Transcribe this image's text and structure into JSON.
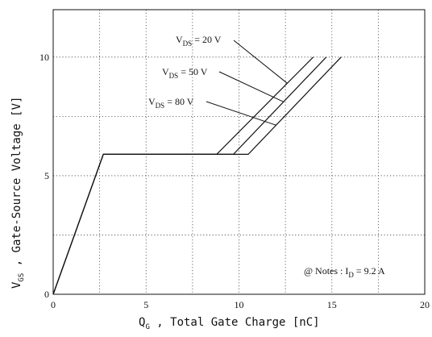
{
  "chart_data": {
    "type": "line",
    "x_axis": {
      "label_main": "Q",
      "label_sub": "G",
      "label_rest": " , Total Gate Charge  [nC]",
      "range": [
        0,
        20
      ],
      "ticks": [
        0,
        5,
        10,
        15,
        20
      ]
    },
    "y_axis": {
      "label_main": "V",
      "label_sub": "GS",
      "label_rest": " ,   Gate-Source Voltage  [V]",
      "range": [
        0,
        12
      ],
      "ticks": [
        0,
        5,
        10
      ]
    },
    "grid": true,
    "series": [
      {
        "name": "V_DS = 20 V",
        "label_main": "V",
        "label_sub": "DS",
        "label_rest": " = 20 V",
        "points": [
          [
            0,
            0
          ],
          [
            2.7,
            5.9
          ],
          [
            8.8,
            5.9
          ],
          [
            14.0,
            10.0
          ]
        ]
      },
      {
        "name": "V_DS = 50 V",
        "label_main": "V",
        "label_sub": "DS",
        "label_rest": " = 50 V",
        "points": [
          [
            0,
            0
          ],
          [
            2.7,
            5.9
          ],
          [
            9.7,
            5.9
          ],
          [
            14.7,
            10.0
          ]
        ]
      },
      {
        "name": "V_DS = 80 V",
        "label_main": "V",
        "label_sub": "DS",
        "label_rest": " = 80 V",
        "points": [
          [
            0,
            0
          ],
          [
            2.7,
            5.9
          ],
          [
            10.5,
            5.9
          ],
          [
            15.5,
            10.0
          ]
        ]
      }
    ],
    "note": {
      "prefix": "@ Notes : I",
      "sub": "D",
      "rest": " = 9.2 A"
    }
  }
}
